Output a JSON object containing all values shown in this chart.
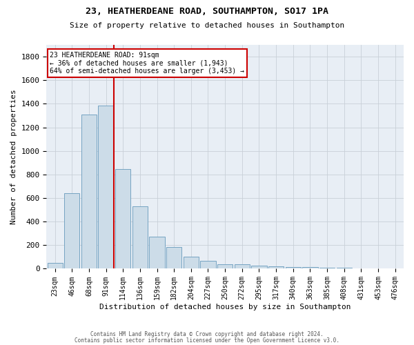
{
  "title": "23, HEATHERDEANE ROAD, SOUTHAMPTON, SO17 1PA",
  "subtitle": "Size of property relative to detached houses in Southampton",
  "xlabel": "Distribution of detached houses by size in Southampton",
  "ylabel": "Number of detached properties",
  "footnote1": "Contains HM Land Registry data © Crown copyright and database right 2024.",
  "footnote2": "Contains public sector information licensed under the Open Government Licence v3.0.",
  "bar_labels": [
    "23sqm",
    "46sqm",
    "68sqm",
    "91sqm",
    "114sqm",
    "136sqm",
    "159sqm",
    "182sqm",
    "204sqm",
    "227sqm",
    "250sqm",
    "272sqm",
    "295sqm",
    "317sqm",
    "340sqm",
    "363sqm",
    "385sqm",
    "408sqm",
    "431sqm",
    "453sqm",
    "476sqm"
  ],
  "bar_values": [
    50,
    640,
    1310,
    1385,
    848,
    530,
    275,
    185,
    105,
    65,
    40,
    35,
    28,
    22,
    15,
    12,
    10,
    8,
    5,
    3,
    2
  ],
  "bar_color": "#ccdce8",
  "bar_edge_color": "#6699bb",
  "vline_color": "#cc0000",
  "vline_bar_index": 3,
  "annotation_line1": "23 HEATHERDEANE ROAD: 91sqm",
  "annotation_line2": "← 36% of detached houses are smaller (1,943)",
  "annotation_line3": "64% of semi-detached houses are larger (3,453) →",
  "annotation_box_color": "#cc0000",
  "ylim": [
    0,
    1900
  ],
  "yticks": [
    0,
    200,
    400,
    600,
    800,
    1000,
    1200,
    1400,
    1600,
    1800
  ],
  "background_color": "#ffffff",
  "plot_bg_color": "#e8eef5",
  "grid_color": "#c8d0d8"
}
